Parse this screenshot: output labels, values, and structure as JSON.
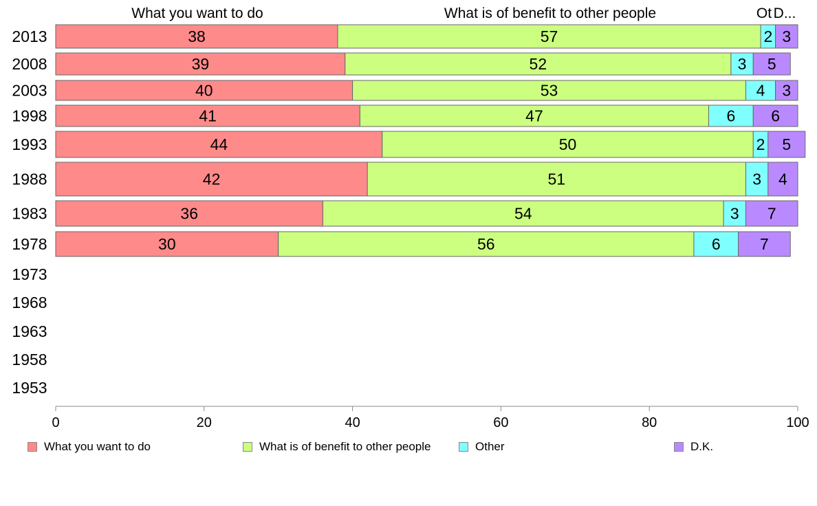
{
  "chart_data": {
    "type": "bar",
    "orientation": "horizontal",
    "stacked": true,
    "categories": [
      "2013",
      "2008",
      "2003",
      "1998",
      "1993",
      "1988",
      "1983",
      "1978",
      "1973",
      "1968",
      "1963",
      "1958",
      "1953"
    ],
    "series": [
      {
        "name": "What you want to do",
        "color": "#ff8a8a",
        "values": [
          38,
          39,
          40,
          41,
          44,
          42,
          36,
          30,
          null,
          null,
          null,
          null,
          null
        ]
      },
      {
        "name": "What is of benefit to other people",
        "color": "#ccff80",
        "values": [
          57,
          52,
          53,
          47,
          50,
          51,
          54,
          56,
          null,
          null,
          null,
          null,
          null
        ]
      },
      {
        "name": "Other",
        "color": "#80ffff",
        "values": [
          2,
          3,
          4,
          6,
          2,
          3,
          3,
          6,
          null,
          null,
          null,
          null,
          null
        ]
      },
      {
        "name": "D.K.",
        "color": "#b98aff",
        "values": [
          3,
          5,
          3,
          6,
          5,
          4,
          7,
          7,
          null,
          null,
          null,
          null,
          null
        ]
      }
    ],
    "top_labels": [
      "What you want to do",
      "What is of benefit to other people",
      "Ot",
      "D..."
    ],
    "xlim": [
      0,
      100
    ],
    "xticks": [
      0,
      20,
      40,
      60,
      80,
      100
    ],
    "grid": false,
    "legend_position": "bottom"
  }
}
